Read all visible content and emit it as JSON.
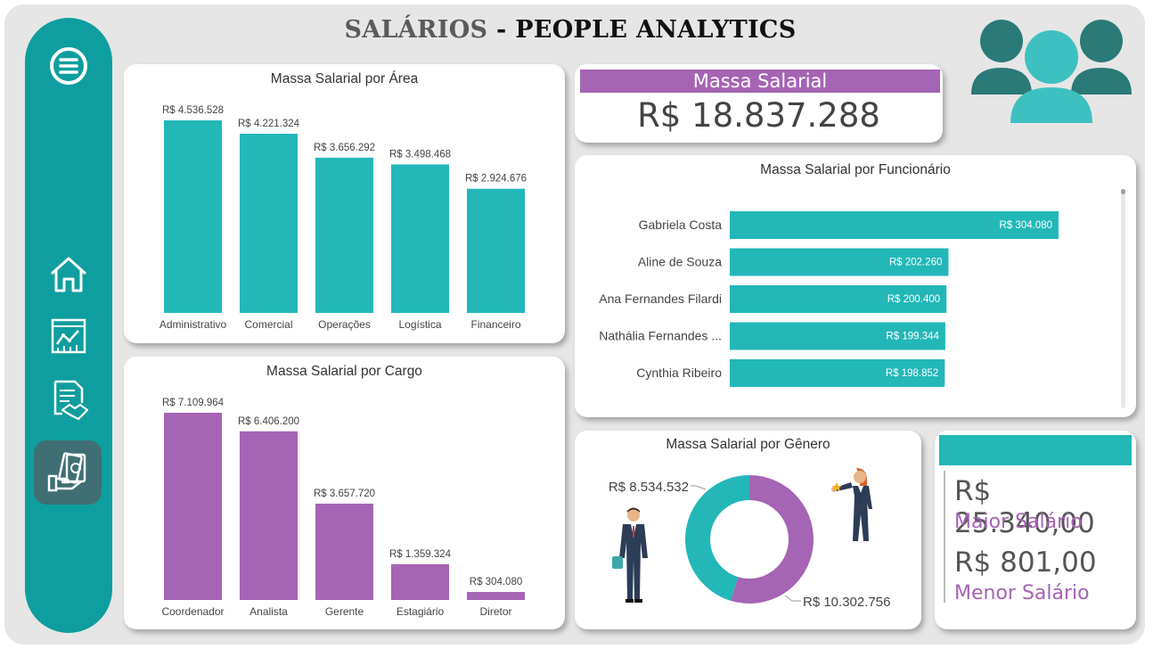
{
  "header": {
    "title_part1": "SALÁRIOS",
    "title_sep": " - ",
    "title_part2": "PEOPLE ANALYTICS"
  },
  "sidebar": {
    "items": [
      {
        "icon": "menu-icon"
      },
      {
        "icon": "home-icon"
      },
      {
        "icon": "dashboard-chart-icon"
      },
      {
        "icon": "document-handshake-icon"
      },
      {
        "icon": "money-hand-icon",
        "active": true
      }
    ]
  },
  "colors": {
    "teal": "#23b7b8",
    "sidebar": "#0f9e9f",
    "purple": "#a564b4",
    "people_icon_dark": "#2a7a78",
    "people_icon_light": "#3fc0c0"
  },
  "kpi": {
    "label": "Massa Salarial",
    "value": "R$ 18.837.288"
  },
  "salary_range": {
    "max_value": "R$ 25.340,00",
    "max_label": "Maior Salário",
    "min_value": "R$ 801,00",
    "min_label": "Menor Salário"
  },
  "chart_data": [
    {
      "type": "bar",
      "title": "Massa Salarial por Área",
      "categories": [
        "Administrativo",
        "Comercial",
        "Operações",
        "Logística",
        "Financeiro"
      ],
      "values": [
        4536528,
        4221324,
        3656292,
        3498468,
        2924676
      ],
      "labels": [
        "R$ 4.536.528",
        "R$ 4.221.324",
        "R$ 3.656.292",
        "R$ 3.498.468",
        "R$ 2.924.676"
      ],
      "ylim": [
        0,
        4536528
      ],
      "color": "#23b7b8"
    },
    {
      "type": "bar",
      "title": "Massa Salarial por Cargo",
      "categories": [
        "Coordenador",
        "Analista",
        "Gerente",
        "Estagiário",
        "Diretor"
      ],
      "values": [
        7109964,
        6406200,
        3657720,
        1359324,
        304080
      ],
      "labels": [
        "R$ 7.109.964",
        "R$ 6.406.200",
        "R$ 3.657.720",
        "R$ 1.359.324",
        "R$ 304.080"
      ],
      "ylim": [
        0,
        7109964
      ],
      "color": "#a564b4"
    },
    {
      "type": "bar",
      "orientation": "horizontal",
      "title": "Massa Salarial por Funcionário",
      "categories": [
        "Gabriela Costa",
        "Aline de Souza",
        "Ana Fernandes Filardi",
        "Nathália Fernandes ...",
        "Cynthia Ribeiro"
      ],
      "values": [
        304080,
        202260,
        200400,
        199344,
        198852
      ],
      "labels": [
        "R$ 304.080",
        "R$ 202.260",
        "R$ 200.400",
        "R$ 199.344",
        "R$ 198.852"
      ],
      "xlim": [
        0,
        304080
      ],
      "color": "#23b7b8"
    },
    {
      "type": "pie",
      "donut": true,
      "title": "Massa Salarial por Gênero",
      "values": [
        10302756,
        8534532
      ],
      "labels": [
        "R$ 10.302.756",
        "R$ 8.534.532"
      ],
      "colors": [
        "#a564b4",
        "#23b7b8"
      ]
    }
  ]
}
